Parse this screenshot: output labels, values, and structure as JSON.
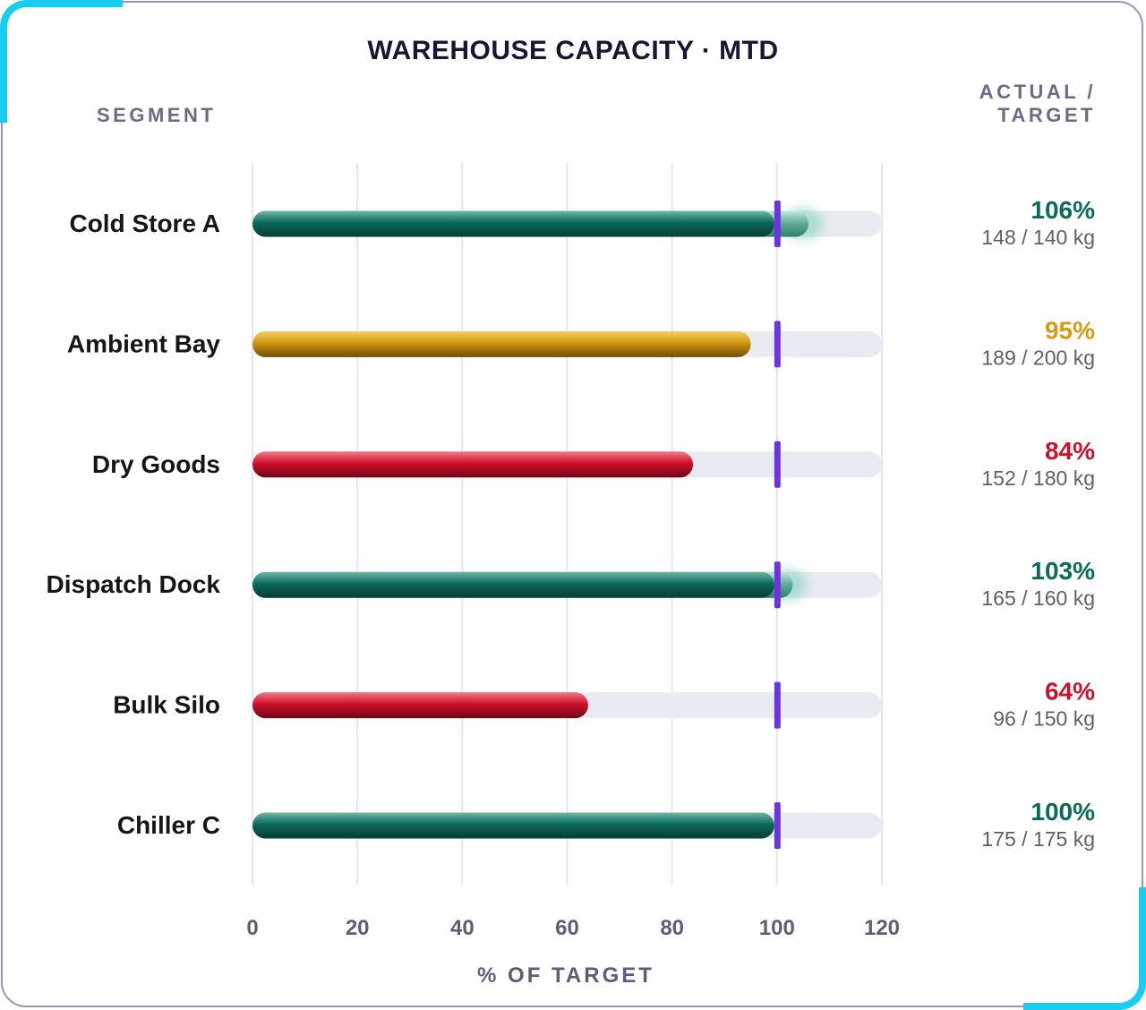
{
  "chart_data": {
    "type": "bar",
    "title": "WAREHOUSE CAPACITY · MTD",
    "row_header": "SEGMENT",
    "value_header": "ACTUAL / TARGET",
    "xlabel": "% OF TARGET",
    "xlim": [
      0,
      120
    ],
    "xticks": [
      "0",
      "20",
      "40",
      "60",
      "80",
      "100",
      "120"
    ],
    "target_marker": 100,
    "categories": [
      "Cold Store A",
      "Ambient Bay",
      "Dry Goods",
      "Dispatch Dock",
      "Bulk Silo",
      "Chiller C"
    ],
    "values": [
      106,
      95,
      84,
      103,
      64,
      100
    ],
    "pct_labels": [
      "106%",
      "95%",
      "84%",
      "103%",
      "64%",
      "100%"
    ],
    "detail_labels": [
      "148 / 140 kg",
      "189 / 200 kg",
      "152 / 180 kg",
      "165 / 160 kg",
      "96 / 150 kg",
      "175 / 175 kg"
    ],
    "status": [
      "over",
      "near",
      "under",
      "over",
      "under",
      "over"
    ],
    "colors": {
      "over": "#0b6b5a",
      "near": "#d79a10",
      "under": "#d0102a",
      "target": "#6f32e0",
      "track": "#e8ecf2",
      "grid": "#e6e4f4"
    }
  }
}
